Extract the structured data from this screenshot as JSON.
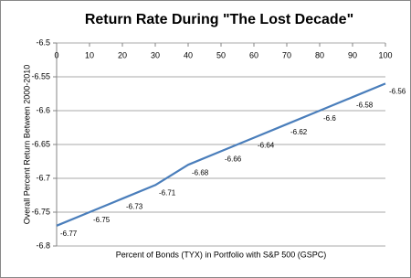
{
  "chart_data": {
    "type": "line",
    "title": "Return Rate During \"The Lost Decade\"",
    "x_label": "Percent of Bonds (TYX) in Portfolio with S&P 500 (GSPC)",
    "y_label": "Overall Percent Return Between 2000-2010",
    "x": [
      0,
      10,
      20,
      30,
      40,
      50,
      60,
      70,
      80,
      90,
      100
    ],
    "series": [
      {
        "color": "#4a7ebb",
        "values": [
          -6.77,
          -6.75,
          -6.73,
          -6.71,
          -6.68,
          -6.66,
          -6.64,
          -6.62,
          -6.6,
          -6.58,
          -6.56
        ]
      }
    ],
    "xlim": [
      0,
      100
    ],
    "xticks": [
      0,
      10,
      20,
      30,
      40,
      50,
      60,
      70,
      80,
      90,
      100
    ],
    "ylim": [
      -6.8,
      -6.5
    ],
    "yticks": [
      -6.5,
      -6.55,
      -6.6,
      -6.65,
      -6.7,
      -6.75,
      -6.8
    ],
    "grid": true,
    "data_labels": true
  }
}
